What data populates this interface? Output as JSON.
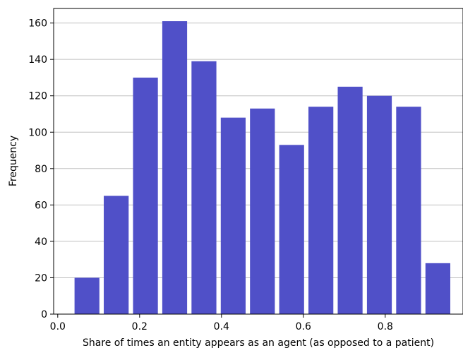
{
  "chart_data": {
    "type": "bar",
    "title": "",
    "xlabel": "Share of times an entity appears as an agent (as opposed to a patient)",
    "ylabel": "Frequency",
    "bar_color": "#5050c8",
    "grid_color": "#c0c0c0",
    "grid": "horizontal",
    "xlim": [
      -0.01,
      0.99
    ],
    "ylim": [
      0,
      168
    ],
    "xticks": [
      0.0,
      0.2,
      0.4,
      0.6,
      0.8
    ],
    "xtick_labels": [
      "0.0",
      "0.2",
      "0.4",
      "0.6",
      "0.8"
    ],
    "yticks": [
      0,
      20,
      40,
      60,
      80,
      100,
      120,
      140,
      160
    ],
    "ytick_labels": [
      "0",
      "20",
      "40",
      "60",
      "80",
      "100",
      "120",
      "140",
      "160"
    ],
    "bin_edges": [
      0.0357,
      0.1071,
      0.1786,
      0.25,
      0.3214,
      0.3929,
      0.4643,
      0.5357,
      0.6071,
      0.6786,
      0.75,
      0.8214,
      0.8929,
      0.9643
    ],
    "bar_width_fraction": 0.85,
    "values": [
      20,
      65,
      130,
      161,
      139,
      108,
      113,
      93,
      114,
      125,
      120,
      114,
      28
    ]
  }
}
